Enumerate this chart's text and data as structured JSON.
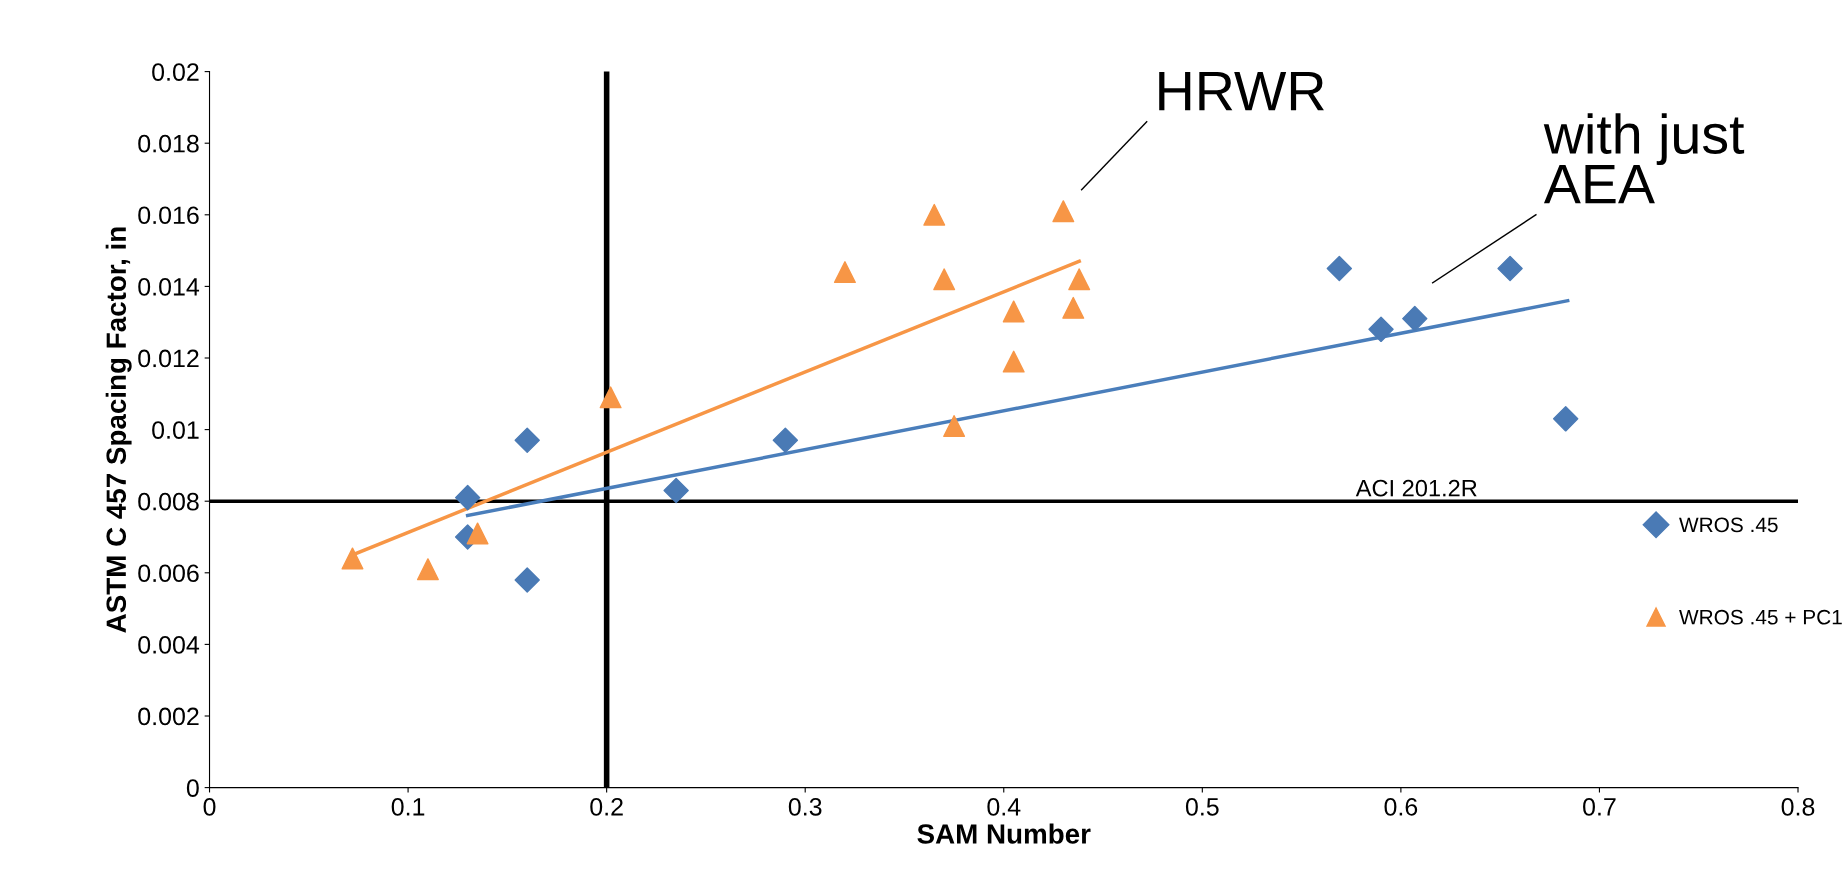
{
  "chart_data": {
    "type": "scatter",
    "xlabel": "SAM Number",
    "ylabel": "ASTM C 457 Spacing Factor, in",
    "xlim": [
      0,
      0.8
    ],
    "xticks": [
      0,
      0.1,
      0.2,
      0.3,
      0.4,
      0.5,
      0.6,
      0.7,
      0.8
    ],
    "ylim": [
      0,
      0.02
    ],
    "yticks": [
      0,
      0.002,
      0.004,
      0.006,
      0.008,
      0.01,
      0.012,
      0.014,
      0.016,
      0.018,
      0.02
    ],
    "grid": false,
    "legend": "right",
    "series": [
      {
        "name": "WROS .45",
        "color": "#4a7ab5",
        "marker": "diamond",
        "x": [
          0.13,
          0.13,
          0.16,
          0.16,
          0.235,
          0.29,
          0.569,
          0.59,
          0.607,
          0.655,
          0.683
        ],
        "values": [
          0.0081,
          0.007,
          0.0097,
          0.0058,
          0.0083,
          0.0097,
          0.0145,
          0.0128,
          0.0131,
          0.0145,
          0.0103
        ]
      },
      {
        "name": "WROS .45 + PC1",
        "color": "#f79646",
        "marker": "triangle",
        "x": [
          0.072,
          0.11,
          0.135,
          0.202,
          0.32,
          0.365,
          0.37,
          0.375,
          0.405,
          0.405,
          0.43,
          0.438,
          0.435
        ],
        "values": [
          0.0064,
          0.0061,
          0.0071,
          0.0109,
          0.0144,
          0.016,
          0.0142,
          0.0101,
          0.0133,
          0.0119,
          0.0161,
          0.0142,
          0.0134
        ]
      },
      {
        "type": "line",
        "color": "#4a7ebb",
        "x": [
          0.13,
          0.684
        ],
        "values": [
          0.0076,
          0.0136
        ]
      },
      {
        "type": "line",
        "color": "#f79646",
        "x": [
          0.072,
          0.438
        ],
        "values": [
          0.0065,
          0.0147
        ]
      }
    ],
    "ref_lines": [
      {
        "axis": "x",
        "value": 0.2,
        "label": null,
        "color": "#000000"
      },
      {
        "axis": "y",
        "value": 0.008,
        "label": "ACI 201.2R",
        "color": "#000000"
      }
    ],
    "annotations": [
      "HRWR",
      "with just\nAEA"
    ]
  }
}
